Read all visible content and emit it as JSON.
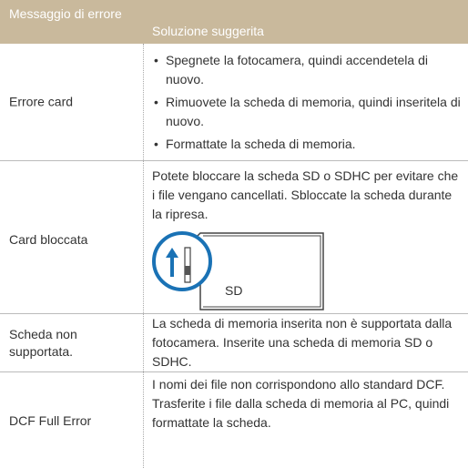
{
  "table": {
    "header": [
      "Messaggio di errore",
      "Soluzione suggerita"
    ],
    "rows": [
      {
        "label": "Errore card",
        "bullets": [
          "Spegnete la fotocamera, quindi accendetela di nuovo.",
          "Rimuovete la scheda di memoria, quindi inseritela di nuovo.",
          "Formattate la scheda di memoria."
        ]
      },
      {
        "label": "Card bloccata",
        "text": "Potete bloccare la scheda SD o SDHC per evitare che i file vengano cancellati. Sbloccate la scheda durante la ripresa.",
        "image_label": "SD"
      },
      {
        "label": "Scheda non supportata.",
        "text": "La scheda di memoria inserita non è supportata dalla fotocamera. Inserite una scheda di memoria SD o SDHC."
      },
      {
        "label": "DCF Full Error",
        "text": "I nomi dei file non corrispondono allo standard DCF. Trasferite i file dalla scheda di memoria al PC, quindi formattate la scheda."
      }
    ]
  }
}
